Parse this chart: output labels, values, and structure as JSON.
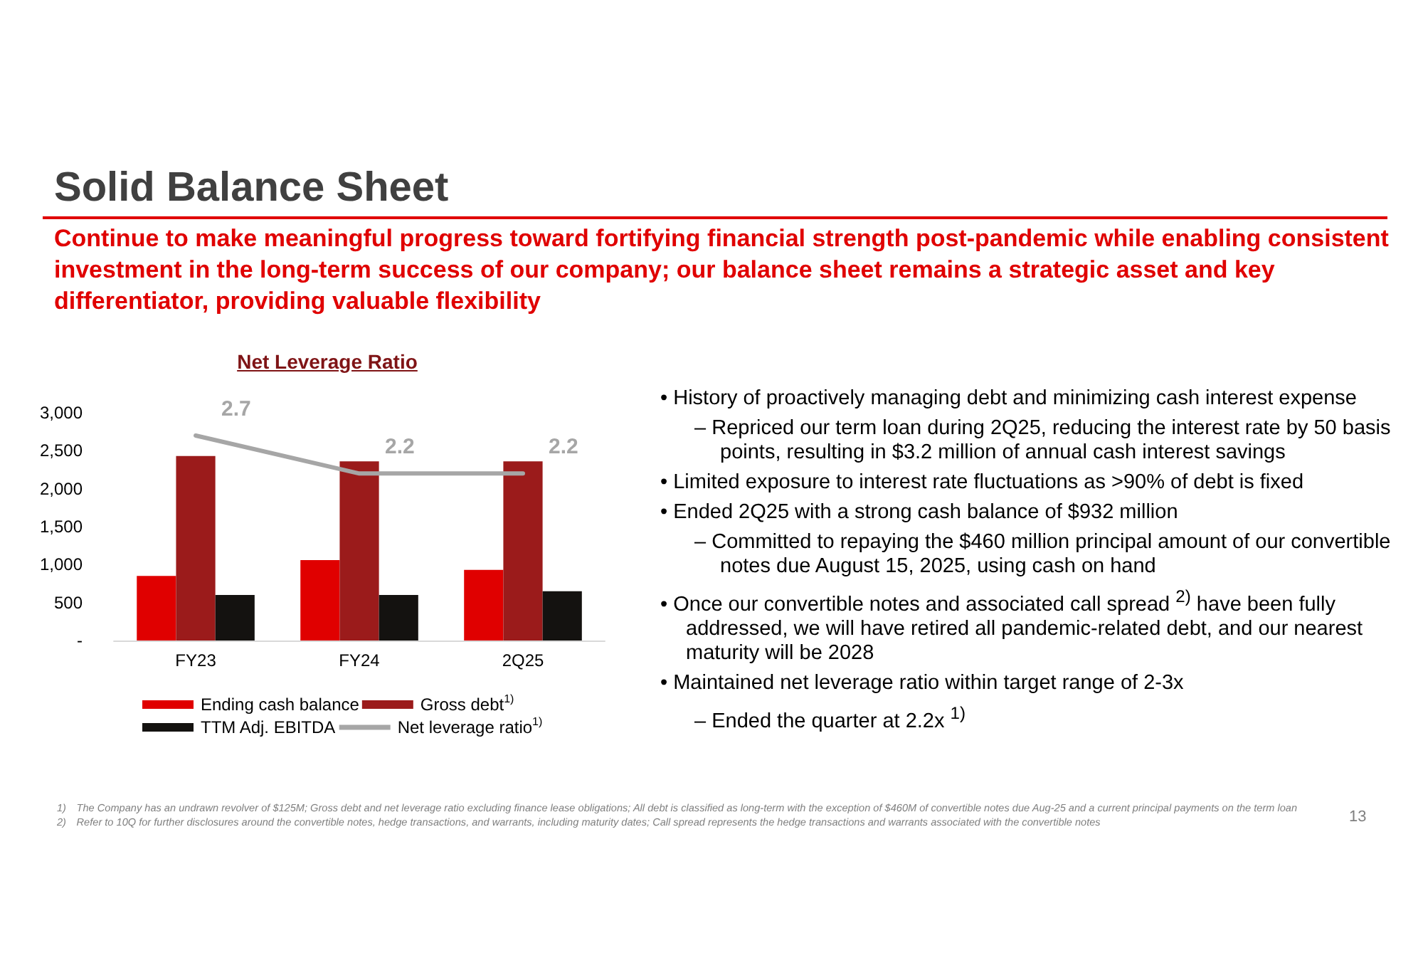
{
  "chart_data": {
    "type": "bar",
    "title": "Net Leverage Ratio",
    "categories": [
      "FY23",
      "FY24",
      "2Q25"
    ],
    "series": [
      {
        "name": "Ending cash balance",
        "color": "#e00000",
        "values": [
          850,
          1060,
          930
        ]
      },
      {
        "name": "Gross debt$^{1)}$",
        "color": "#9b1b1b",
        "values": [
          2430,
          2360,
          2360
        ]
      },
      {
        "name": "TTM Adj. EBITDA",
        "color": "#141210",
        "values": [
          600,
          600,
          650
        ]
      },
      {
        "name": "Net leverage ratio$^{1)}$",
        "type": "line",
        "axis": "y2",
        "color": "#a6a6a6",
        "values": [
          2.7,
          2.2,
          2.2
        ],
        "value_labels": [
          "2.7",
          "2.2",
          "2.2"
        ]
      }
    ],
    "ylim": [
      0,
      3000
    ],
    "yticks": [
      {
        "value": 0,
        "label": "-"
      },
      500,
      {
        "value": 1000,
        "label": "1,000"
      },
      {
        "value": 1500,
        "label": "1,500"
      },
      {
        "value": 2000,
        "label": "2,000"
      },
      {
        "value": 2500,
        "label": "2,500"
      },
      {
        "value": 3000,
        "label": "3,000"
      }
    ],
    "grid": false,
    "legend": "bottom",
    "marker": "none",
    "annotations": [
      "Solid Balance Sheet",
      "Continue to make meaningful progress toward fortifying financial strength post-pandemic while enabling consistent investment in the long-term success of our company; our balance sheet remains a strategic asset and key differentiator, providing valuable flexibility",
      "• History of proactively managing debt and minimizing cash interest expense",
      "– Repriced our term loan during 2Q25, reducing the interest rate by 50 basis points, resulting in $3.2 million of annual cash interest savings",
      "• Limited exposure to interest rate fluctuations as >90% of debt is fixed",
      "• Ended 2Q25 with a strong cash balance of $932 million",
      "– Committed to repaying the $460 million principal amount of our convertible notes due August 15, 2025, using cash on hand",
      "• Once our convertible notes and associated call spread $^{2)}$ have been fully addressed, we will have retired all pandemic-related debt, and our nearest maturity will be 2028",
      "• Maintained net leverage ratio within target range of 2-3x",
      "– Ended the quarter at 2.2x $^{1)}$",
      "1) The Company has an undrawn revolver of $125M; Gross debt and net leverage ratio excluding finance lease obligations; All debt is classified as long-term with the exception of $460M of convertible notes due Aug-25 and a current principal payments on the term loan",
      "2) Refer to 10Q for further disclosures around the convertible notes, hedge transactions, and warrants, including maturity dates; Call spread represents the hedge transactions and warrants associated with the convertible notes",
      "13"
    ]
  }
}
